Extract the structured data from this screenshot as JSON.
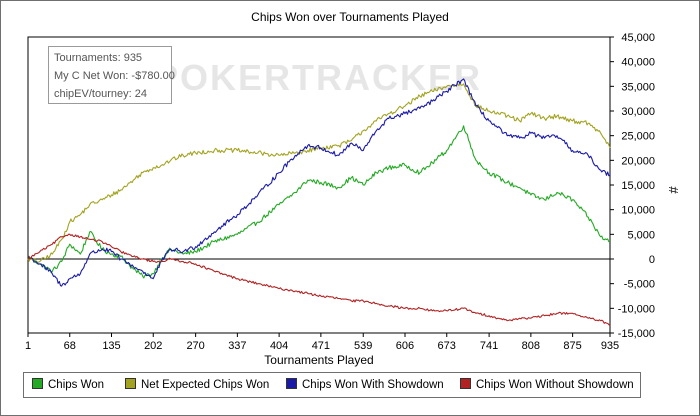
{
  "chart_data": {
    "type": "line",
    "title": "Chips Won over Tournaments Played",
    "xlabel": "Tournaments Played",
    "ylabel": "#",
    "xlim": [
      1,
      935
    ],
    "ylim": [
      -15000,
      45000
    ],
    "x_ticks": [
      1,
      68,
      135,
      202,
      270,
      337,
      404,
      471,
      539,
      606,
      673,
      741,
      808,
      875,
      935
    ],
    "y_ticks": [
      -15000,
      -10000,
      -5000,
      0,
      5000,
      10000,
      15000,
      20000,
      25000,
      30000,
      35000,
      40000,
      45000
    ],
    "y_tick_labels": [
      "-15,000",
      "-10,000",
      "-5,000",
      "0",
      "5,000",
      "10,000",
      "15,000",
      "20,000",
      "25,000",
      "30,000",
      "35,000",
      "40,000",
      "45,000"
    ],
    "grid": false,
    "zero_line": true,
    "legend_position": "bottom",
    "series": [
      {
        "name": "Chips Won",
        "color": "#22aa22",
        "x": [
          1,
          20,
          40,
          55,
          68,
          85,
          100,
          120,
          135,
          150,
          170,
          185,
          202,
          215,
          230,
          250,
          270,
          300,
          337,
          370,
          404,
          430,
          450,
          471,
          500,
          520,
          539,
          560,
          580,
          606,
          630,
          650,
          673,
          700,
          720,
          741,
          770,
          790,
          808,
          830,
          850,
          875,
          900,
          920,
          935
        ],
        "y": [
          500,
          -1000,
          -2500,
          -500,
          3000,
          1000,
          5500,
          2000,
          1000,
          500,
          -2000,
          -3500,
          -3000,
          0,
          2000,
          1000,
          1500,
          3500,
          5000,
          7500,
          11000,
          13500,
          16000,
          15500,
          14500,
          16500,
          15000,
          17500,
          18500,
          19000,
          17500,
          19500,
          22000,
          27000,
          20000,
          17500,
          15500,
          14500,
          13000,
          12000,
          13500,
          12000,
          8500,
          4500,
          3500
        ]
      },
      {
        "name": "Net Expected Chips Won",
        "color": "#a3a321",
        "x": [
          1,
          20,
          40,
          55,
          68,
          85,
          100,
          120,
          135,
          150,
          170,
          185,
          202,
          215,
          230,
          250,
          270,
          300,
          337,
          370,
          404,
          430,
          450,
          471,
          500,
          520,
          539,
          560,
          580,
          606,
          630,
          650,
          673,
          700,
          720,
          741,
          770,
          790,
          808,
          830,
          850,
          875,
          900,
          920,
          935
        ],
        "y": [
          0,
          -500,
          1000,
          4000,
          7500,
          9000,
          11000,
          12000,
          13000,
          14000,
          16000,
          17500,
          18500,
          19000,
          20000,
          21000,
          21500,
          22000,
          22000,
          21500,
          21000,
          21500,
          22000,
          22500,
          23000,
          24000,
          26000,
          28000,
          29500,
          31000,
          33000,
          34000,
          35000,
          35500,
          31000,
          30000,
          29000,
          28000,
          29500,
          28500,
          29000,
          28000,
          27500,
          25500,
          22500
        ]
      },
      {
        "name": "Chips Won With Showdown",
        "color": "#1a1aa8",
        "x": [
          1,
          20,
          40,
          55,
          68,
          85,
          100,
          120,
          135,
          150,
          170,
          185,
          202,
          215,
          230,
          250,
          270,
          300,
          337,
          370,
          404,
          430,
          450,
          471,
          500,
          520,
          539,
          560,
          580,
          606,
          630,
          650,
          673,
          700,
          720,
          741,
          770,
          790,
          808,
          830,
          850,
          875,
          900,
          920,
          935
        ],
        "y": [
          500,
          -1000,
          -3000,
          -5500,
          -4000,
          -3000,
          1000,
          2000,
          1500,
          0,
          -1500,
          -2500,
          -4000,
          -500,
          2000,
          1500,
          2500,
          5500,
          9000,
          13000,
          17500,
          21000,
          23000,
          22500,
          21000,
          23500,
          22000,
          26000,
          28500,
          29500,
          30500,
          32000,
          34000,
          36500,
          31000,
          28000,
          25000,
          24500,
          25500,
          24500,
          25000,
          22000,
          21000,
          18000,
          17000
        ]
      },
      {
        "name": "Chips Won Without Showdown",
        "color": "#b22222",
        "x": [
          1,
          20,
          40,
          55,
          68,
          85,
          100,
          120,
          135,
          150,
          170,
          185,
          202,
          215,
          230,
          250,
          270,
          300,
          337,
          370,
          404,
          430,
          450,
          471,
          500,
          520,
          539,
          560,
          580,
          606,
          630,
          650,
          673,
          700,
          720,
          741,
          770,
          790,
          808,
          830,
          850,
          875,
          900,
          920,
          935
        ],
        "y": [
          0,
          1500,
          3000,
          4500,
          5000,
          4500,
          4000,
          3500,
          2500,
          1500,
          500,
          0,
          -500,
          -500,
          0,
          -500,
          -1000,
          -2500,
          -4000,
          -5000,
          -6000,
          -6500,
          -7000,
          -7500,
          -8000,
          -8500,
          -8500,
          -9000,
          -9500,
          -10000,
          -10000,
          -10500,
          -10500,
          -10000,
          -11000,
          -11500,
          -12500,
          -12000,
          -12000,
          -11500,
          -11000,
          -11000,
          -12000,
          -12500,
          -13500
        ]
      }
    ]
  },
  "info_box": {
    "line1": "Tournaments: 935",
    "line2": "My C Net Won: -$780.00",
    "line3": "chipEV/tourney: 24"
  },
  "watermark": "POKERTRACKER"
}
